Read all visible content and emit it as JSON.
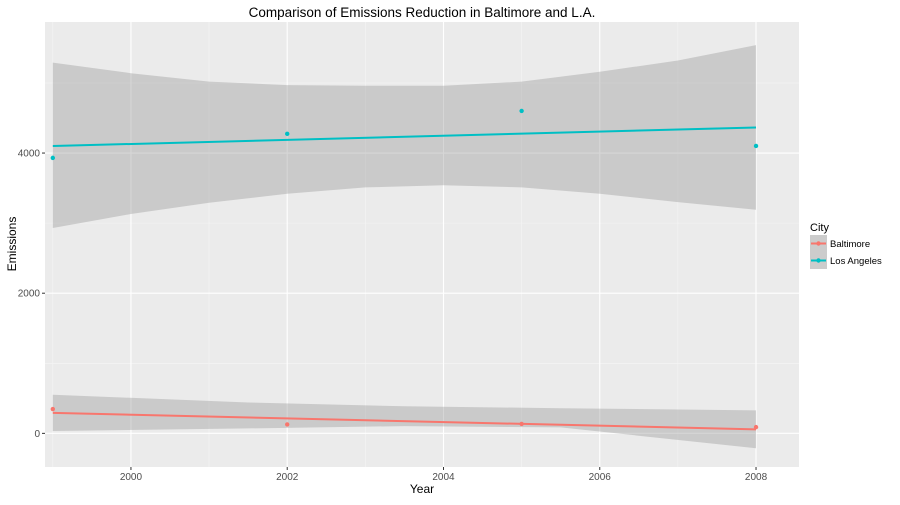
{
  "chart_data": {
    "type": "scatter",
    "title": "Comparison of Emissions Reduction in Baltimore and L.A.",
    "xlabel": "Year",
    "ylabel": "Emissions",
    "xlim": [
      1998.9,
      2008.55
    ],
    "ylim": [
      -480,
      5870
    ],
    "x_ticks": [
      2000,
      2002,
      2004,
      2006,
      2008
    ],
    "y_ticks": [
      0,
      2000,
      4000
    ],
    "grid": true,
    "legend": {
      "title": "City",
      "position": "right"
    },
    "smooth": "lm",
    "series": [
      {
        "name": "Baltimore",
        "color": "#F8766D",
        "points": [
          {
            "x": 1999,
            "y": 347
          },
          {
            "x": 2002,
            "y": 128
          },
          {
            "x": 2005,
            "y": 135
          },
          {
            "x": 2008,
            "y": 89
          }
        ],
        "fit": {
          "x": [
            1999,
            2008
          ],
          "y": [
            292,
            57
          ]
        },
        "band": {
          "x": [
            1999,
            2001.5,
            2003.5,
            2005.5,
            2008
          ],
          "upper": [
            552,
            441,
            386,
            359,
            327
          ],
          "lower": [
            33,
            71,
            103,
            85,
            -212
          ]
        }
      },
      {
        "name": "Los Angeles",
        "color": "#00BFC4",
        "points": [
          {
            "x": 1999,
            "y": 3931
          },
          {
            "x": 2002,
            "y": 4274
          },
          {
            "x": 2005,
            "y": 4601
          },
          {
            "x": 2008,
            "y": 4101
          }
        ],
        "fit": {
          "x": [
            1999,
            2008
          ],
          "y": [
            4100,
            4365
          ]
        },
        "band": {
          "x": [
            1999,
            2000,
            2001,
            2002,
            2003,
            2004,
            2005,
            2006,
            2007,
            2008
          ],
          "upper": [
            5290,
            5140,
            5020,
            4970,
            4960,
            4960,
            5020,
            5160,
            5320,
            5540
          ],
          "lower": [
            2930,
            3130,
            3290,
            3420,
            3510,
            3540,
            3510,
            3420,
            3300,
            3190
          ]
        }
      }
    ]
  }
}
